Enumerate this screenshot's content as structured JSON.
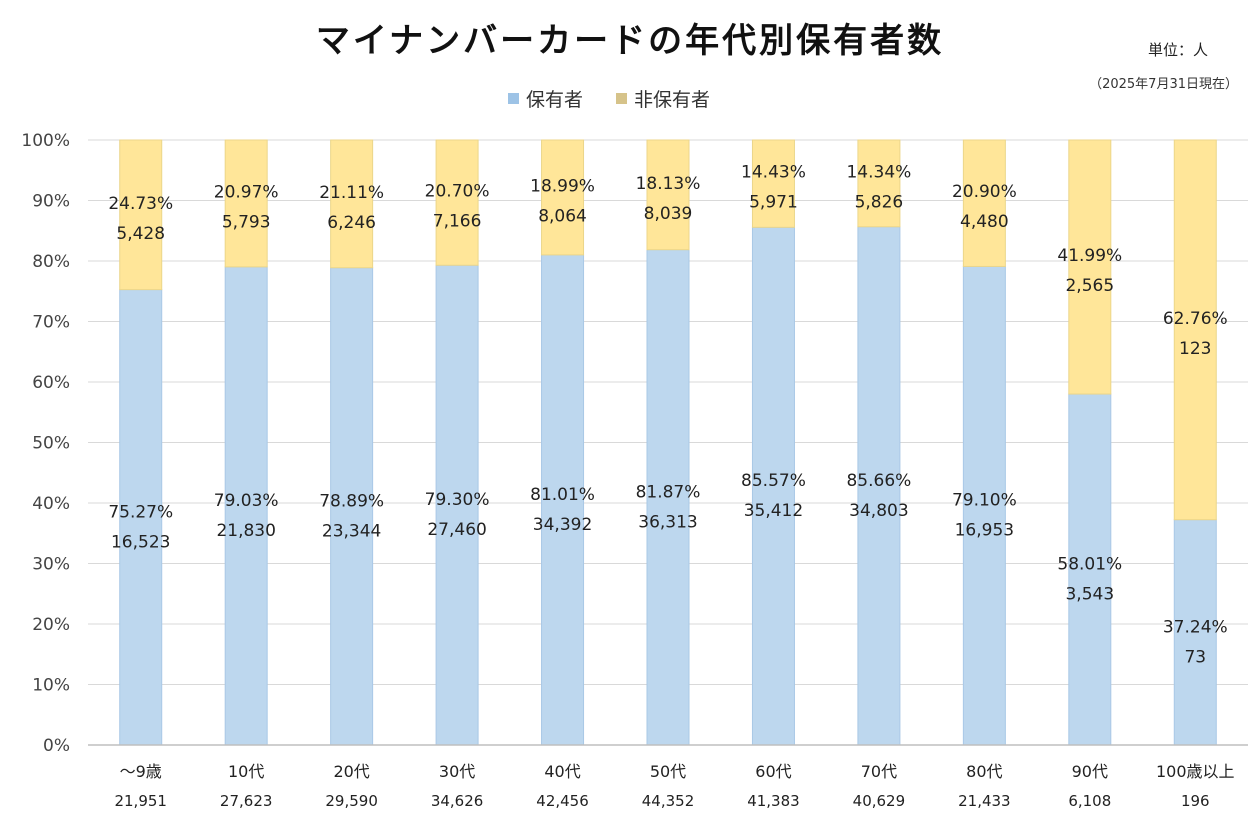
{
  "unit_label": "単位：人",
  "as_of": "（2025年7月31日現在）",
  "chart_data": {
    "type": "bar",
    "stacked": true,
    "percent_stacked": true,
    "title": "マイナンバーカードの年代別保有者数",
    "xlabel": "",
    "ylabel": "",
    "ylim": [
      0,
      100
    ],
    "yticks": [
      "0%",
      "10%",
      "20%",
      "30%",
      "40%",
      "50%",
      "60%",
      "70%",
      "80%",
      "90%",
      "100%"
    ],
    "grid": true,
    "legend": "top-center",
    "categories": [
      "～9歳",
      "10代",
      "20代",
      "30代",
      "40代",
      "50代",
      "60代",
      "70代",
      "80代",
      "90代",
      "100歳以上"
    ],
    "totals": [
      "21,951",
      "27,623",
      "29,590",
      "34,626",
      "42,456",
      "44,352",
      "41,383",
      "40,629",
      "21,433",
      "6,108",
      "196"
    ],
    "series": [
      {
        "name": "保有者",
        "color": "#bdd7ee",
        "legend_color": "#9dc3e6",
        "percent": [
          75.27,
          79.03,
          78.89,
          79.3,
          81.01,
          81.87,
          85.57,
          85.66,
          79.1,
          58.01,
          37.24
        ],
        "percent_labels": [
          "75.27%",
          "79.03%",
          "78.89%",
          "79.30%",
          "81.01%",
          "81.87%",
          "85.57%",
          "85.66%",
          "79.10%",
          "58.01%",
          "37.24%"
        ],
        "count_labels": [
          "16,523",
          "21,830",
          "23,344",
          "27,460",
          "34,392",
          "36,313",
          "35,412",
          "34,803",
          "16,953",
          "3,543",
          "73"
        ]
      },
      {
        "name": "非保有者",
        "color": "#ffe699",
        "legend_color": "#d6c38a",
        "percent": [
          24.73,
          20.97,
          21.11,
          20.7,
          18.99,
          18.13,
          14.43,
          14.34,
          20.9,
          41.99,
          62.76
        ],
        "percent_labels": [
          "24.73%",
          "20.97%",
          "21.11%",
          "20.70%",
          "18.99%",
          "18.13%",
          "14.43%",
          "14.34%",
          "20.90%",
          "41.99%",
          "62.76%"
        ],
        "count_labels": [
          "5,428",
          "5,793",
          "6,246",
          "7,166",
          "8,064",
          "8,039",
          "5,971",
          "5,826",
          "4,480",
          "2,565",
          "123"
        ]
      }
    ]
  }
}
